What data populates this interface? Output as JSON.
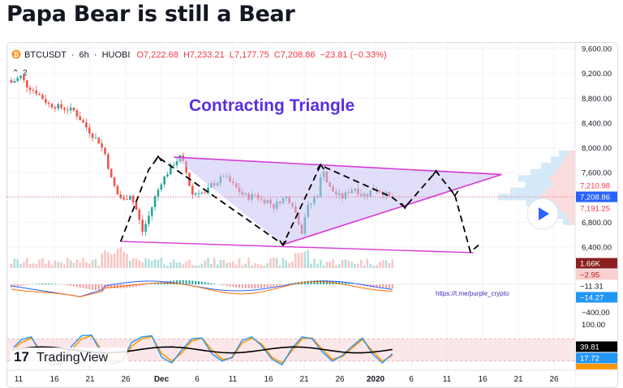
{
  "page": {
    "title": "Papa Bear is still a Bear"
  },
  "header": {
    "symbol": "BTCUSDT",
    "timeframe": "6h",
    "exchange": "HUOBI",
    "sep": "·",
    "open": "O7,222.68",
    "high": "H7,233.21",
    "low": "L7,177.75",
    "close": "C7,208.86",
    "change": "−23.81 (−0.33%)",
    "collapse_count": "2"
  },
  "annotations": {
    "pattern_label": "Contracting Triangle",
    "link": "https://t.me/purple_crypto"
  },
  "brand": {
    "name": "TradingView"
  },
  "colors": {
    "up": "#26a69a",
    "down": "#ef5350",
    "pattern": "#d63ad6",
    "triangle_fill": "#c9c2f6",
    "label": "#5b2ee0",
    "price_red": "#f23645",
    "price_blue": "#2962ff",
    "volume_badge": "#8c2020"
  },
  "price_axis": {
    "ticks": [
      "9,600.00",
      "9,200.00",
      "8,800.00",
      "8,400.00",
      "8,000.00",
      "7,600.00",
      "7,200.00",
      "6,800.00",
      "6,400.00"
    ],
    "badges": {
      "high": "7,210.98",
      "current": "7,208.86",
      "low": "7,191.25",
      "volume": "1.66K"
    }
  },
  "macd_axis": {
    "values": [
      "−2.95",
      "−11.31",
      "−14.27"
    ],
    "tick": "−400.00"
  },
  "stoch_axis": {
    "top": "100.00",
    "k": "39.81",
    "d": "17.72"
  },
  "time_axis": {
    "labels": [
      "11",
      "16",
      "21",
      "26",
      "Dec",
      "6",
      "11",
      "16",
      "21",
      "26",
      "2020",
      "6",
      "11",
      "16",
      "21",
      "26"
    ]
  },
  "chart_data": {
    "type": "candlestick",
    "title": "Papa Bear is still a Bear",
    "symbol": "BTCUSDT",
    "interval": "6h",
    "ylim": [
      6200,
      9650
    ],
    "x_labels": [
      "11",
      "16",
      "21",
      "26",
      "Dec",
      "6",
      "11",
      "16",
      "21",
      "26",
      "2020",
      "6",
      "11",
      "16",
      "21",
      "26"
    ],
    "series": [
      {
        "name": "BTCUSDT",
        "close_path": [
          [
            0,
            9050
          ],
          [
            3,
            9150
          ],
          [
            5,
            9000
          ],
          [
            8,
            8900
          ],
          [
            12,
            8700
          ],
          [
            16,
            8650
          ],
          [
            20,
            8600
          ],
          [
            23,
            8400
          ],
          [
            26,
            8200
          ],
          [
            28,
            8100
          ],
          [
            30,
            7900
          ],
          [
            32,
            7500
          ],
          [
            34,
            7250
          ],
          [
            36,
            7150
          ],
          [
            38,
            7250
          ],
          [
            40,
            7000
          ],
          [
            42,
            6650
          ],
          [
            44,
            6900
          ],
          [
            46,
            7200
          ],
          [
            48,
            7450
          ],
          [
            50,
            7600
          ],
          [
            52,
            7750
          ],
          [
            54,
            7850
          ],
          [
            55,
            7750
          ],
          [
            56,
            7600
          ],
          [
            57,
            7400
          ],
          [
            58,
            7250
          ],
          [
            60,
            7300
          ],
          [
            62,
            7250
          ],
          [
            64,
            7400
          ],
          [
            66,
            7450
          ],
          [
            68,
            7550
          ],
          [
            70,
            7450
          ],
          [
            72,
            7350
          ],
          [
            74,
            7250
          ],
          [
            76,
            7200
          ],
          [
            78,
            7250
          ],
          [
            80,
            7150
          ],
          [
            82,
            7150
          ],
          [
            84,
            7050
          ],
          [
            86,
            7150
          ],
          [
            88,
            7200
          ],
          [
            90,
            7100
          ],
          [
            92,
            6800
          ],
          [
            93,
            6650
          ],
          [
            94,
            6900
          ],
          [
            95,
            7050
          ],
          [
            96,
            7100
          ],
          [
            97,
            7200
          ],
          [
            98,
            7250
          ],
          [
            99,
            7500
          ],
          [
            100,
            7650
          ],
          [
            101,
            7450
          ],
          [
            102,
            7350
          ],
          [
            104,
            7250
          ],
          [
            106,
            7200
          ],
          [
            108,
            7300
          ],
          [
            110,
            7350
          ],
          [
            112,
            7250
          ],
          [
            114,
            7250
          ],
          [
            116,
            7350
          ],
          [
            118,
            7300
          ],
          [
            120,
            7250
          ],
          [
            121,
            7200
          ],
          [
            122,
            7209
          ]
        ]
      }
    ],
    "triangle": {
      "upper_line": [
        [
          52,
          7850
        ],
        [
          157,
          7570
        ]
      ],
      "lower_line": [
        [
          87,
          6440
        ],
        [
          157,
          7570
        ]
      ],
      "bottom_line": [
        [
          35,
          6490
        ],
        [
          148,
          6310
        ]
      ]
    },
    "wave_path": [
      [
        35,
        6490
      ],
      [
        44,
        7650
      ],
      [
        47,
        7850
      ],
      [
        87,
        6440
      ],
      [
        99,
        7720
      ],
      [
        122,
        7200
      ],
      [
        126,
        7040
      ],
      [
        136,
        7620
      ],
      [
        142,
        7240
      ],
      [
        147,
        6320
      ],
      [
        150,
        6450
      ]
    ],
    "projection": [
      [
        122,
        7200
      ],
      [
        126,
        7040
      ],
      [
        136,
        7620
      ],
      [
        142,
        7240
      ],
      [
        147,
        6320
      ],
      [
        150,
        6450
      ]
    ],
    "stochastic": {
      "overbought": 80,
      "oversold": 20,
      "k_latest": 39.81,
      "d_latest": 17.72,
      "k_points": [
        50,
        78,
        85,
        35,
        10,
        12,
        60,
        88,
        90,
        40,
        12,
        20,
        70,
        85,
        88,
        30,
        15,
        50,
        80,
        82,
        40,
        20,
        30,
        75,
        85,
        60,
        25,
        10,
        55,
        85,
        80,
        45,
        20,
        35,
        60,
        82,
        40,
        15,
        40
      ],
      "d_points": [
        45,
        70,
        82,
        45,
        18,
        14,
        50,
        80,
        88,
        50,
        20,
        18,
        60,
        80,
        86,
        40,
        20,
        42,
        74,
        82,
        50,
        25,
        28,
        68,
        82,
        65,
        30,
        15,
        48,
        80,
        82,
        52,
        25,
        32,
        55,
        78,
        48,
        20,
        35
      ]
    },
    "macd": {
      "values": [
        -2.95,
        -11.31,
        -14.27
      ],
      "axis_label": -400
    }
  }
}
